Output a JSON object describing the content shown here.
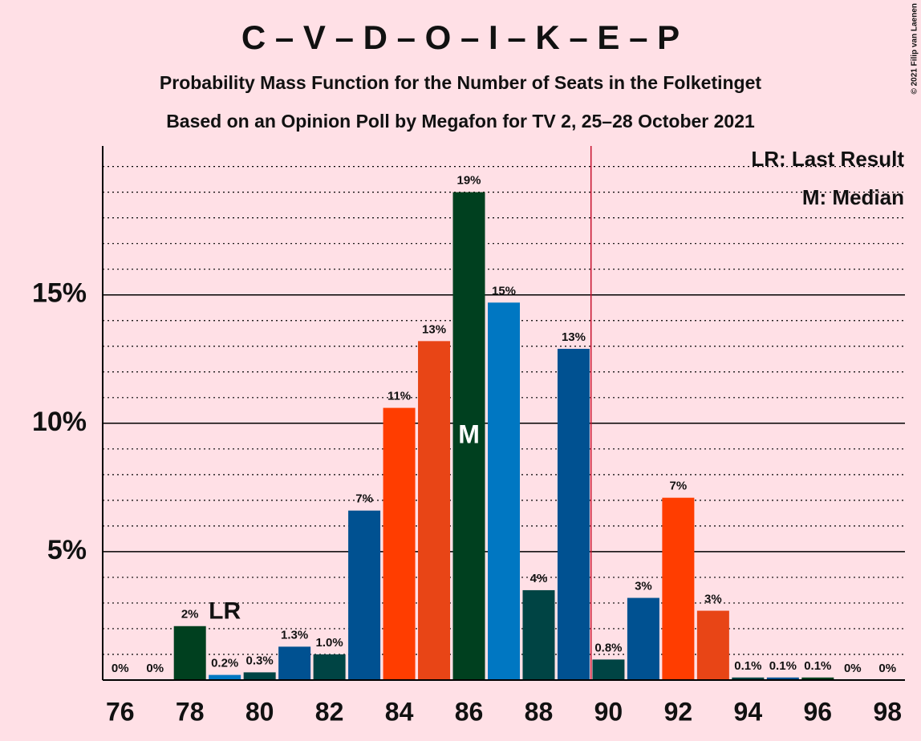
{
  "chart_data": {
    "type": "bar",
    "title": "C – V – D – O – I – K – E – P",
    "subtitle": "Probability Mass Function for the Number of Seats in the Folketinget",
    "subtitle2": "Based on an Opinion Poll by Megafon for TV 2, 25–28 October 2021",
    "copyright": "© 2021 Filip van Laenen",
    "x": [
      76,
      77,
      78,
      79,
      80,
      81,
      82,
      83,
      84,
      85,
      86,
      87,
      88,
      89,
      90,
      91,
      92,
      93,
      94,
      95,
      96,
      97,
      98
    ],
    "values": [
      0,
      0,
      2.1,
      0.2,
      0.3,
      1.3,
      1.0,
      6.6,
      10.6,
      13.2,
      19.0,
      14.7,
      3.5,
      12.9,
      0.8,
      3.2,
      7.1,
      2.7,
      0.1,
      0.1,
      0.1,
      0,
      0
    ],
    "value_labels": [
      "0%",
      "0%",
      "2%",
      "0.2%",
      "0.3%",
      "1.3%",
      "1.0%",
      "7%",
      "11%",
      "13%",
      "19%",
      "15%",
      "4%",
      "13%",
      "0.8%",
      "3%",
      "7%",
      "3%",
      "0.1%",
      "0.1%",
      "0.1%",
      "0%",
      "0%"
    ],
    "colors": [
      "#00401f",
      "#0077c2",
      "#00401f",
      "#0077c2",
      "#004444",
      "#005191",
      "#004444",
      "#005191",
      "#ff3d00",
      "#e84516",
      "#00401f",
      "#0077c2",
      "#004444",
      "#005191",
      "#004444",
      "#005191",
      "#ff3d00",
      "#e84516",
      "#004444",
      "#005191",
      "#00401f",
      "#0077c2",
      "#00401f"
    ],
    "xlim": [
      75.5,
      98.5
    ],
    "xticks": [
      76,
      78,
      80,
      82,
      84,
      86,
      88,
      90,
      92,
      94,
      96,
      98
    ],
    "ylim": [
      0,
      20.8
    ],
    "yticks": [
      {
        "value": 5,
        "label": "5%"
      },
      {
        "value": 10,
        "label": "10%"
      },
      {
        "value": 15,
        "label": "15%"
      }
    ],
    "minor_yticks": [
      1,
      2,
      3,
      4,
      6,
      7,
      8,
      9,
      11,
      12,
      13,
      14,
      16,
      17,
      18,
      19,
      20
    ],
    "grid": true,
    "majority_line": 89.5,
    "last_result": {
      "x": 79,
      "label": "LR"
    },
    "median": {
      "x": 86,
      "label": "M"
    },
    "legend": [
      "LR: Last Result",
      "M: Median"
    ]
  }
}
